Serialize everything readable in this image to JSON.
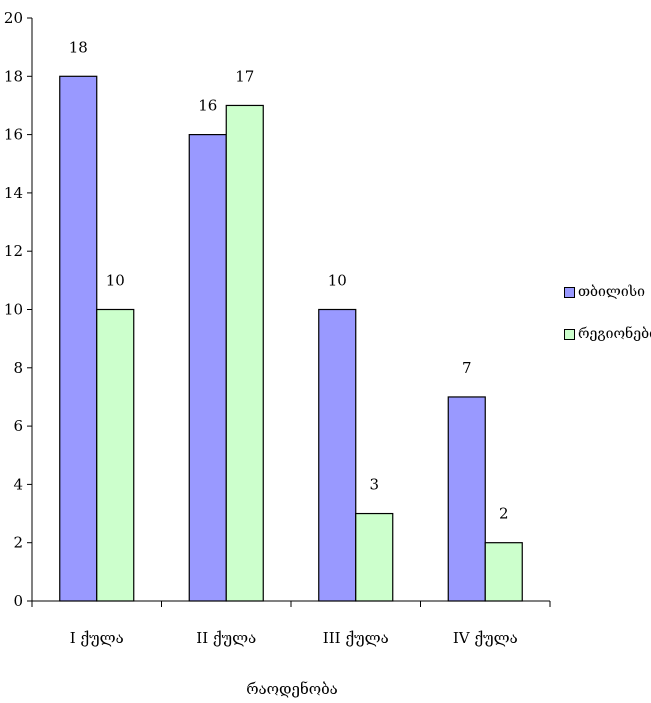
{
  "chart_data": {
    "type": "bar",
    "title": "",
    "xlabel": "რაოდენობა",
    "ylabel": "",
    "categories": [
      "I ქულა",
      "II ქულა",
      "III ქულა",
      "IV ქულა"
    ],
    "series": [
      {
        "name": "თბილისი",
        "color": "#9999ff",
        "values": [
          18,
          16,
          10,
          7
        ]
      },
      {
        "name": "რეგიონები",
        "color": "#ccffcc",
        "values": [
          10,
          17,
          3,
          2
        ]
      }
    ],
    "ylim": [
      0,
      20
    ],
    "yticks": [
      0,
      2,
      4,
      6,
      8,
      10,
      12,
      14,
      16,
      18,
      20
    ],
    "data_labels": true,
    "grid": false,
    "legend_position": "right"
  }
}
